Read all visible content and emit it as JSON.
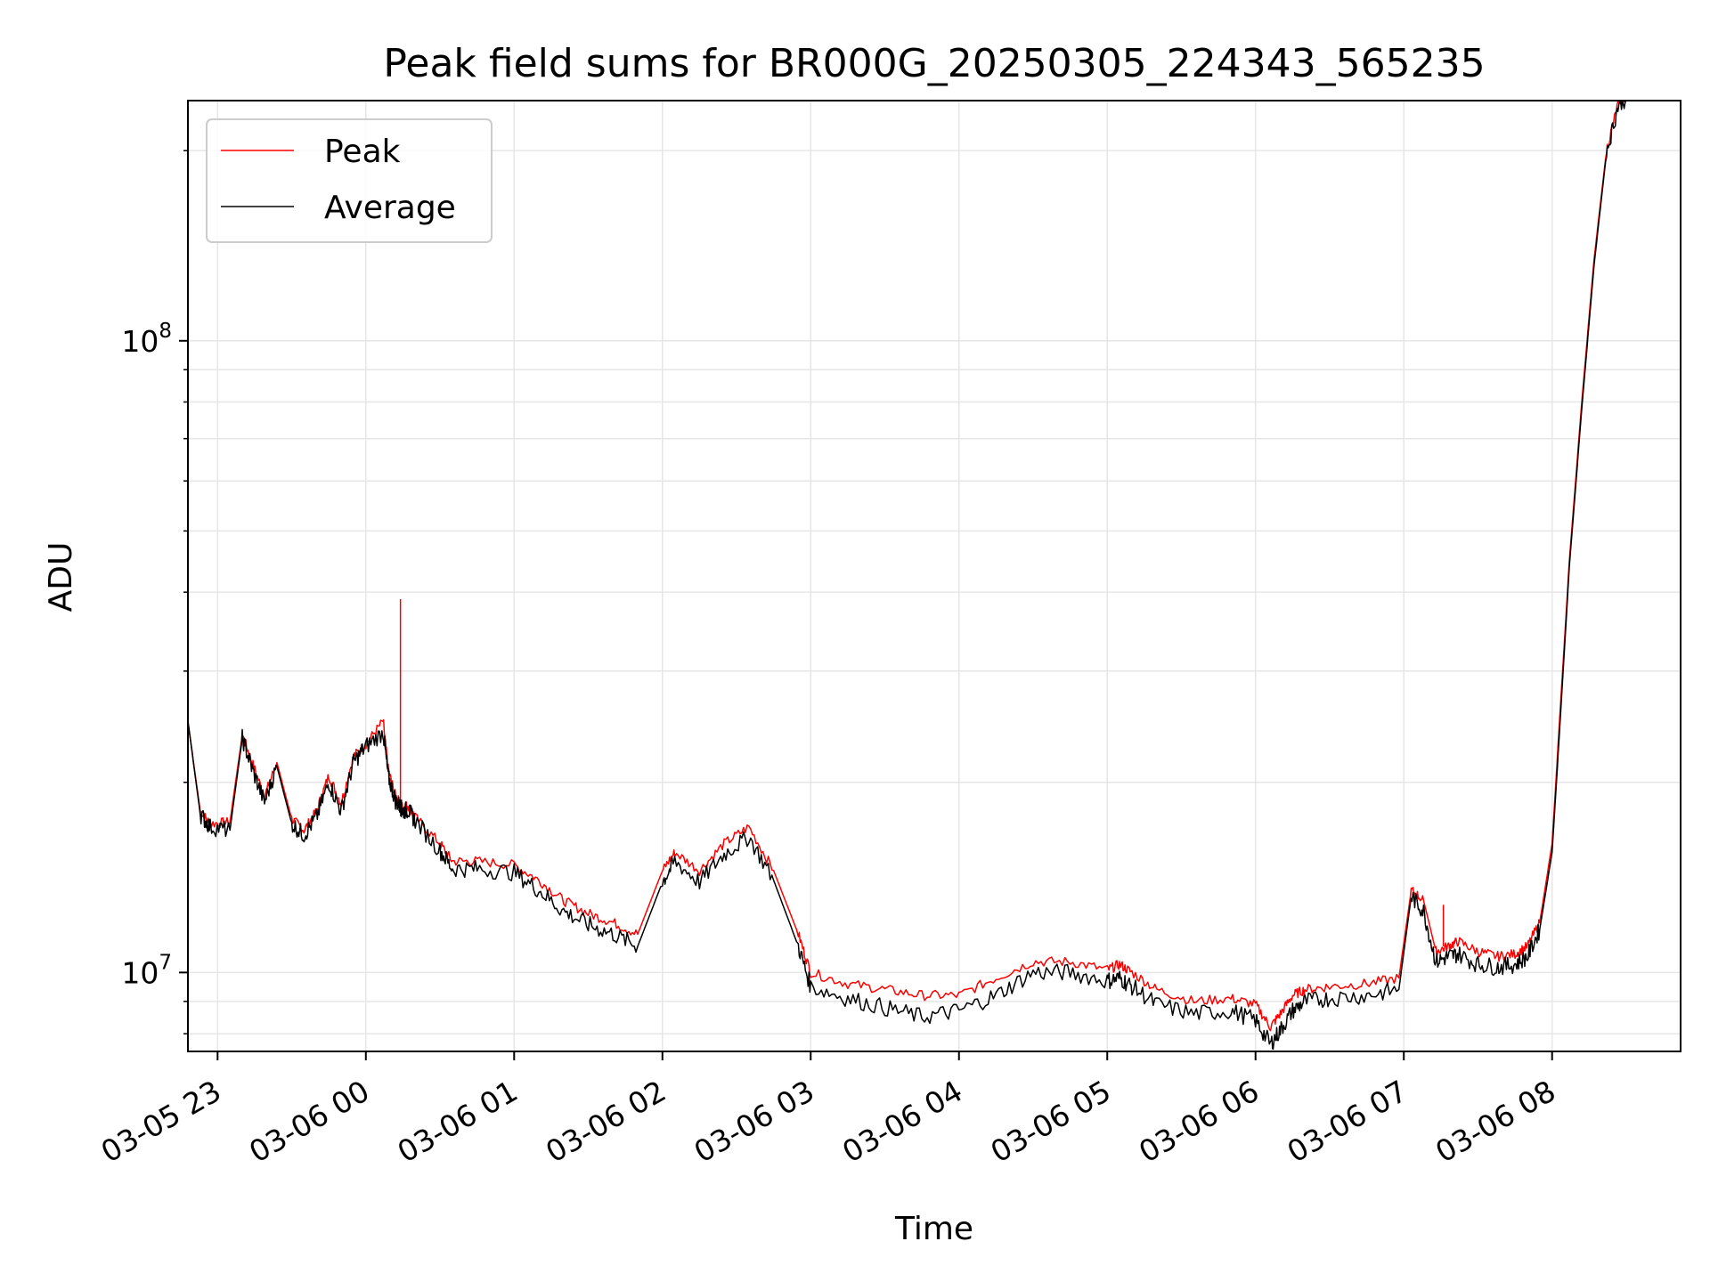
{
  "chart_data": {
    "type": "line",
    "title": "Peak field sums for BR000G_20250305_224343_565235",
    "xlabel": "Time",
    "ylabel": "ADU",
    "x_unit": "datetime",
    "xlim": [
      "2025-03-05T22:48",
      "2025-03-06T08:52"
    ],
    "ylim": [
      7500000,
      240000000
    ],
    "yscale": "log",
    "grid": true,
    "legend": "top-left",
    "x_ticks": [
      "2025-03-05T23:00",
      "2025-03-06T00:00",
      "2025-03-06T01:00",
      "2025-03-06T02:00",
      "2025-03-06T03:00",
      "2025-03-06T04:00",
      "2025-03-06T05:00",
      "2025-03-06T06:00",
      "2025-03-06T07:00",
      "2025-03-06T08:00"
    ],
    "x_tick_labels": [
      "03-05 23",
      "03-06 00",
      "03-06 01",
      "03-06 02",
      "03-06 03",
      "03-06 04",
      "03-06 05",
      "03-06 06",
      "03-06 07",
      "03-06 08"
    ],
    "y_ticks": [
      10000000,
      100000000
    ],
    "y_tick_labels": [
      {
        "base": "10",
        "exp": "7"
      },
      {
        "base": "10",
        "exp": "8"
      }
    ],
    "series": [
      {
        "name": "Peak",
        "color": "#ff0000",
        "x": [
          "2025-03-05T22:48",
          "2025-03-05T22:53",
          "2025-03-05T22:57",
          "2025-03-05T23:05",
          "2025-03-05T23:10",
          "2025-03-05T23:14",
          "2025-03-05T23:19",
          "2025-03-05T23:24",
          "2025-03-05T23:30",
          "2025-03-05T23:35",
          "2025-03-05T23:40",
          "2025-03-05T23:45",
          "2025-03-05T23:50",
          "2025-03-05T23:55",
          "2025-03-06T00:00",
          "2025-03-06T00:07",
          "2025-03-06T00:09",
          "2025-03-06T00:12",
          "2025-03-06T00:14",
          "2025-03-06T00:15",
          "2025-03-06T00:17",
          "2025-03-06T00:20",
          "2025-03-06T00:30",
          "2025-03-06T00:35",
          "2025-03-06T00:45",
          "2025-03-06T01:00",
          "2025-03-06T01:10",
          "2025-03-06T01:20",
          "2025-03-06T01:30",
          "2025-03-06T01:40",
          "2025-03-06T01:50",
          "2025-03-06T02:00",
          "2025-03-06T02:05",
          "2025-03-06T02:15",
          "2025-03-06T02:25",
          "2025-03-06T02:35",
          "2025-03-06T02:45",
          "2025-03-06T02:55",
          "2025-03-06T03:00",
          "2025-03-06T03:15",
          "2025-03-06T03:30",
          "2025-03-06T03:45",
          "2025-03-06T04:00",
          "2025-03-06T04:15",
          "2025-03-06T04:30",
          "2025-03-06T04:45",
          "2025-03-06T05:00",
          "2025-03-06T05:05",
          "2025-03-06T05:10",
          "2025-03-06T05:20",
          "2025-03-06T05:35",
          "2025-03-06T05:50",
          "2025-03-06T06:00",
          "2025-03-06T06:06",
          "2025-03-06T06:10",
          "2025-03-06T06:15",
          "2025-03-06T06:20",
          "2025-03-06T06:30",
          "2025-03-06T06:45",
          "2025-03-06T06:58",
          "2025-03-06T07:03",
          "2025-03-06T07:08",
          "2025-03-06T07:13",
          "2025-03-06T07:18",
          "2025-03-06T07:22",
          "2025-03-06T07:30",
          "2025-03-06T07:38",
          "2025-03-06T07:45",
          "2025-03-06T07:50",
          "2025-03-06T07:55",
          "2025-03-06T08:00",
          "2025-03-06T08:03",
          "2025-03-06T08:07",
          "2025-03-06T08:12",
          "2025-03-06T08:17",
          "2025-03-06T08:22",
          "2025-03-06T08:27",
          "2025-03-06T08:32"
        ],
        "y": [
          25000000,
          18000000,
          17200000,
          17300000,
          23800000,
          21500000,
          19000000,
          21500000,
          17500000,
          16800000,
          18000000,
          20500000,
          18500000,
          22000000,
          23000000,
          25000000,
          21000000,
          19000000,
          18500000,
          18200000,
          18400000,
          17600000,
          16000000,
          15000000,
          15000000,
          14800000,
          14000000,
          13000000,
          12400000,
          12000000,
          11500000,
          14500000,
          15500000,
          14500000,
          16000000,
          17000000,
          14500000,
          11500000,
          10000000,
          9600000,
          9400000,
          9200000,
          9200000,
          9800000,
          10400000,
          10400000,
          10100000,
          10300000,
          10000000,
          9400000,
          9000000,
          9100000,
          8900000,
          8200000,
          8600000,
          9200000,
          9400000,
          9500000,
          9600000,
          9800000,
          13500000,
          13000000,
          10800000,
          11000000,
          11200000,
          10800000,
          10600000,
          10700000,
          11000000,
          12000000,
          16000000,
          25000000,
          45000000,
          80000000,
          135000000,
          200000000,
          240000000,
          245000000
        ],
        "spikes": [
          {
            "x": "2025-03-06T00:14",
            "y": 39000000
          },
          {
            "x": "2025-03-06T07:16",
            "y": 12800000
          }
        ]
      },
      {
        "name": "Average",
        "color": "#000000",
        "x": [
          "2025-03-05T22:48",
          "2025-03-05T22:53",
          "2025-03-05T22:57",
          "2025-03-05T23:05",
          "2025-03-05T23:10",
          "2025-03-05T23:14",
          "2025-03-05T23:19",
          "2025-03-05T23:24",
          "2025-03-05T23:30",
          "2025-03-05T23:35",
          "2025-03-05T23:40",
          "2025-03-05T23:45",
          "2025-03-05T23:50",
          "2025-03-05T23:55",
          "2025-03-06T00:00",
          "2025-03-06T00:07",
          "2025-03-06T00:09",
          "2025-03-06T00:12",
          "2025-03-06T00:14",
          "2025-03-06T00:15",
          "2025-03-06T00:17",
          "2025-03-06T00:20",
          "2025-03-06T00:30",
          "2025-03-06T00:35",
          "2025-03-06T00:45",
          "2025-03-06T01:00",
          "2025-03-06T01:10",
          "2025-03-06T01:20",
          "2025-03-06T01:30",
          "2025-03-06T01:40",
          "2025-03-06T01:50",
          "2025-03-06T02:00",
          "2025-03-06T02:05",
          "2025-03-06T02:15",
          "2025-03-06T02:25",
          "2025-03-06T02:35",
          "2025-03-06T02:45",
          "2025-03-06T02:55",
          "2025-03-06T03:00",
          "2025-03-06T03:15",
          "2025-03-06T03:30",
          "2025-03-06T03:45",
          "2025-03-06T04:00",
          "2025-03-06T04:15",
          "2025-03-06T04:30",
          "2025-03-06T04:45",
          "2025-03-06T05:00",
          "2025-03-06T05:05",
          "2025-03-06T05:10",
          "2025-03-06T05:20",
          "2025-03-06T05:35",
          "2025-03-06T05:50",
          "2025-03-06T06:00",
          "2025-03-06T06:06",
          "2025-03-06T06:10",
          "2025-03-06T06:15",
          "2025-03-06T06:20",
          "2025-03-06T06:30",
          "2025-03-06T06:45",
          "2025-03-06T06:58",
          "2025-03-06T07:03",
          "2025-03-06T07:08",
          "2025-03-06T07:13",
          "2025-03-06T07:18",
          "2025-03-06T07:22",
          "2025-03-06T07:30",
          "2025-03-06T07:38",
          "2025-03-06T07:45",
          "2025-03-06T07:50",
          "2025-03-06T07:55",
          "2025-03-06T08:00",
          "2025-03-06T08:03",
          "2025-03-06T08:07",
          "2025-03-06T08:12",
          "2025-03-06T08:17",
          "2025-03-06T08:22",
          "2025-03-06T08:27",
          "2025-03-06T08:32"
        ],
        "y": [
          25000000,
          17800000,
          17000000,
          16800000,
          23500000,
          21000000,
          18600000,
          21200000,
          17200000,
          16500000,
          17600000,
          20000000,
          18000000,
          21500000,
          22800000,
          24000000,
          20500000,
          18700000,
          18300000,
          18000000,
          18100000,
          17400000,
          15600000,
          14600000,
          14600000,
          14400000,
          13500000,
          12500000,
          11900000,
          11500000,
          11000000,
          13900000,
          15000000,
          13900000,
          15400000,
          16400000,
          14000000,
          11000000,
          9500000,
          9100000,
          8800000,
          8500000,
          8700000,
          9200000,
          10000000,
          10000000,
          9700000,
          9800000,
          9500000,
          8900000,
          8600000,
          8700000,
          8400000,
          7700000,
          8100000,
          8700000,
          9000000,
          9100000,
          9200000,
          9400000,
          13200000,
          12500000,
          10400000,
          10600000,
          10700000,
          10300000,
          10200000,
          10300000,
          10600000,
          11700000,
          15500000,
          24000000,
          44000000,
          78000000,
          132000000,
          198000000,
          238000000,
          244000000
        ]
      }
    ]
  }
}
